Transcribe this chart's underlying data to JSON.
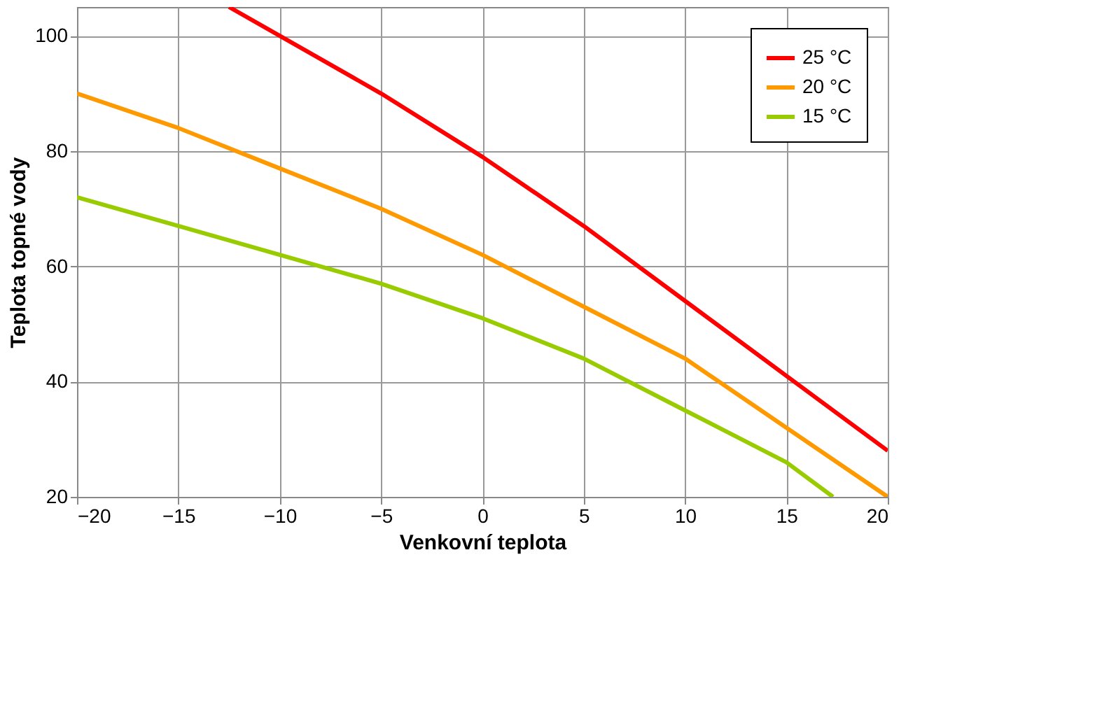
{
  "chart_data": {
    "type": "line",
    "xlabel": "Venkovní teplota",
    "ylabel": "Teplota topné vody",
    "xlim": [
      -20,
      20
    ],
    "ylim": [
      20,
      105
    ],
    "xticks": [
      -20,
      -15,
      -10,
      -5,
      0,
      5,
      10,
      15,
      20
    ],
    "yticks": [
      20,
      40,
      60,
      80,
      100
    ],
    "grid": true,
    "legend": "top right",
    "marker": "none",
    "line_style": "solid",
    "series": [
      {
        "name": "25 °C",
        "color": "#ff0000",
        "x": [
          -12.5,
          -10,
          -5,
          0,
          5,
          10,
          15,
          20
        ],
        "values": [
          105,
          100,
          90,
          79,
          67,
          54,
          41,
          28
        ]
      },
      {
        "name": "20 °C",
        "color": "#ff9900",
        "x": [
          -20,
          -15,
          -10,
          -5,
          0,
          5,
          10,
          15,
          20
        ],
        "values": [
          90,
          84,
          77,
          70,
          62,
          53,
          44,
          32,
          20
        ]
      },
      {
        "name": "15 °C",
        "color": "#99cc00",
        "x": [
          -20,
          -15,
          -10,
          -5,
          0,
          5,
          10,
          15,
          17.3
        ],
        "values": [
          72,
          67,
          62,
          57,
          51,
          44,
          35,
          26,
          20
        ]
      }
    ]
  }
}
